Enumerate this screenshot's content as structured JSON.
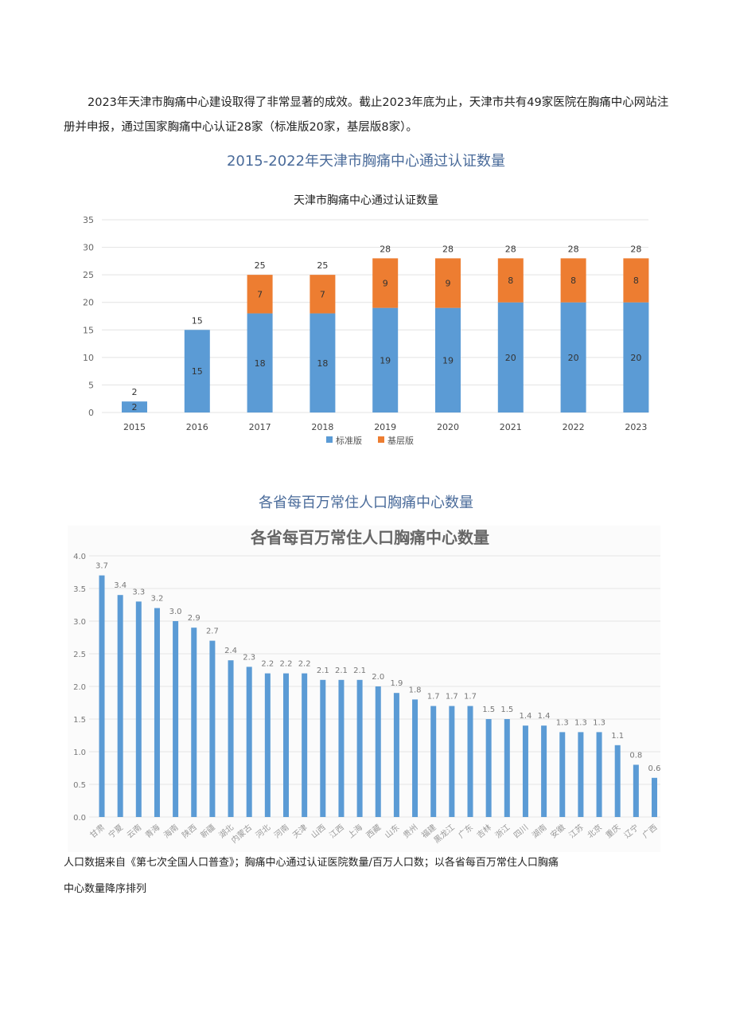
{
  "paragraph": "2023年天津市胸痛中心建设取得了非常显著的成效。截止2023年底为止，天津市共有49家医院在胸痛中心网站注册并申报，通过国家胸痛中心认证28家（标准版20家，基层版8家）。",
  "heading1": "2015-2022年天津市胸痛中心通过认证数量",
  "heading2": "各省每百万常住人口胸痛中心数量",
  "note_line1": "人口数据来自《第七次全国人口普查》；胸痛中心通过认证医院数量/百万人口数；以各省每百万常住人口胸痛",
  "note_line2": "中心数量降序排列",
  "chart_data": [
    {
      "type": "bar",
      "stacked": true,
      "title": "天津市胸痛中心通过认证数量",
      "categories": [
        "2015",
        "2016",
        "2017",
        "2018",
        "2019",
        "2020",
        "2021",
        "2022",
        "2023"
      ],
      "series": [
        {
          "name": "标准版",
          "color": "#5b9bd5",
          "values": [
            2,
            15,
            18,
            18,
            19,
            19,
            20,
            20,
            20
          ]
        },
        {
          "name": "基层版",
          "color": "#ed7d31",
          "values": [
            0,
            0,
            7,
            7,
            9,
            9,
            8,
            8,
            8
          ]
        }
      ],
      "totals": [
        2,
        15,
        25,
        25,
        28,
        28,
        28,
        28,
        28
      ],
      "ylim": [
        0,
        35
      ],
      "yticks": [
        0,
        5,
        10,
        15,
        20,
        25,
        30,
        35
      ],
      "grid": true,
      "legend": "bottom"
    },
    {
      "type": "bar",
      "title": "各省每百万常住人口胸痛中心数量",
      "categories": [
        "甘肃",
        "宁夏",
        "云南",
        "青海",
        "海南",
        "陕西",
        "新疆",
        "湖北",
        "内蒙古",
        "河北",
        "河南",
        "天津",
        "山西",
        "江西",
        "上海",
        "西藏",
        "山东",
        "贵州",
        "福建",
        "黑龙江",
        "广东",
        "吉林",
        "浙江",
        "四川",
        "湖南",
        "安徽",
        "江苏",
        "北京",
        "重庆",
        "辽宁",
        "广西"
      ],
      "values": [
        3.7,
        3.4,
        3.3,
        3.2,
        3.0,
        2.9,
        2.7,
        2.4,
        2.3,
        2.2,
        2.2,
        2.2,
        2.1,
        2.1,
        2.1,
        2.0,
        1.9,
        1.8,
        1.7,
        1.7,
        1.7,
        1.5,
        1.5,
        1.4,
        1.4,
        1.3,
        1.3,
        1.3,
        1.1,
        0.8,
        0.6
      ],
      "color": "#5b9bd5",
      "ylim": [
        0,
        4.0
      ],
      "yticks": [
        "0.0",
        "0.5",
        "1.0",
        "1.5",
        "2.0",
        "2.5",
        "3.0",
        "3.5",
        "4.0"
      ],
      "grid": true
    }
  ]
}
